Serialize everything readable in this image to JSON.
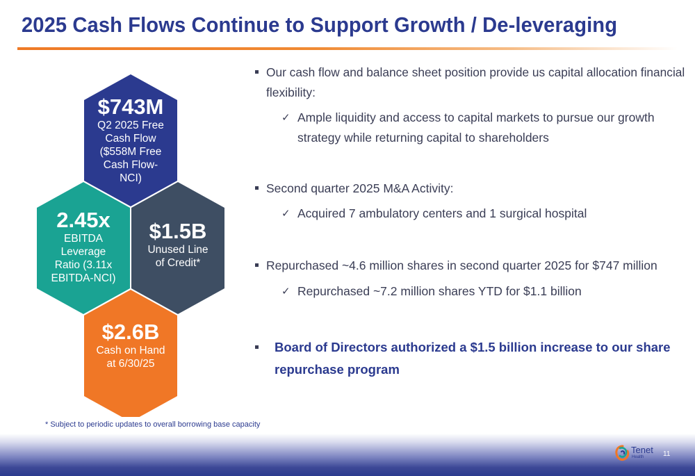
{
  "title": "2025 Cash Flows Continue to Support Growth / De-leveraging",
  "colors": {
    "navy": "#2b3a8f",
    "teal": "#1aa393",
    "slate": "#3e4e63",
    "orange": "#f07726",
    "accent_rule": "#ef7a26"
  },
  "hexes": {
    "fcf": {
      "value": "$743M",
      "lines": [
        "Q2 2025 Free",
        "Cash Flow",
        "($558M Free",
        "Cash Flow-",
        "NCI)"
      ]
    },
    "leverage": {
      "value": "2.45x",
      "lines": [
        "EBITDA",
        "Leverage",
        "Ratio (3.11x",
        "EBITDA-NCI)"
      ]
    },
    "credit": {
      "value": "$1.5B",
      "lines": [
        "Unused Line",
        "of Credit*"
      ]
    },
    "cash": {
      "value": "$2.6B",
      "lines": [
        "Cash on Hand",
        "at 6/30/25"
      ]
    }
  },
  "bullets": {
    "b1_line1": "Our cash flow and balance sheet position provide us capital allocation financial",
    "b1_line2": "flexibility:",
    "b1_sub_line1": "Ample liquidity and access to capital markets to pursue our growth",
    "b1_sub_line2": "strategy while returning capital to shareholders",
    "b2": "Second quarter 2025 M&A Activity:",
    "b2_sub": "Acquired 7 ambulatory centers and 1 surgical hospital",
    "b3": "Repurchased ~4.6 million shares in second quarter 2025 for $747 million",
    "b3_sub": "Repurchased ~7.2 million shares YTD for $1.1 billion",
    "b4_line1": "Board of Directors authorized a $1.5 billion increase to our share",
    "b4_line2": "repurchase program"
  },
  "check_glyph": "✓",
  "footnote": "* Subject to periodic updates to overall borrowing base capacity",
  "logo": {
    "name": "Tenet",
    "sub": "Health"
  },
  "page_number": "11"
}
